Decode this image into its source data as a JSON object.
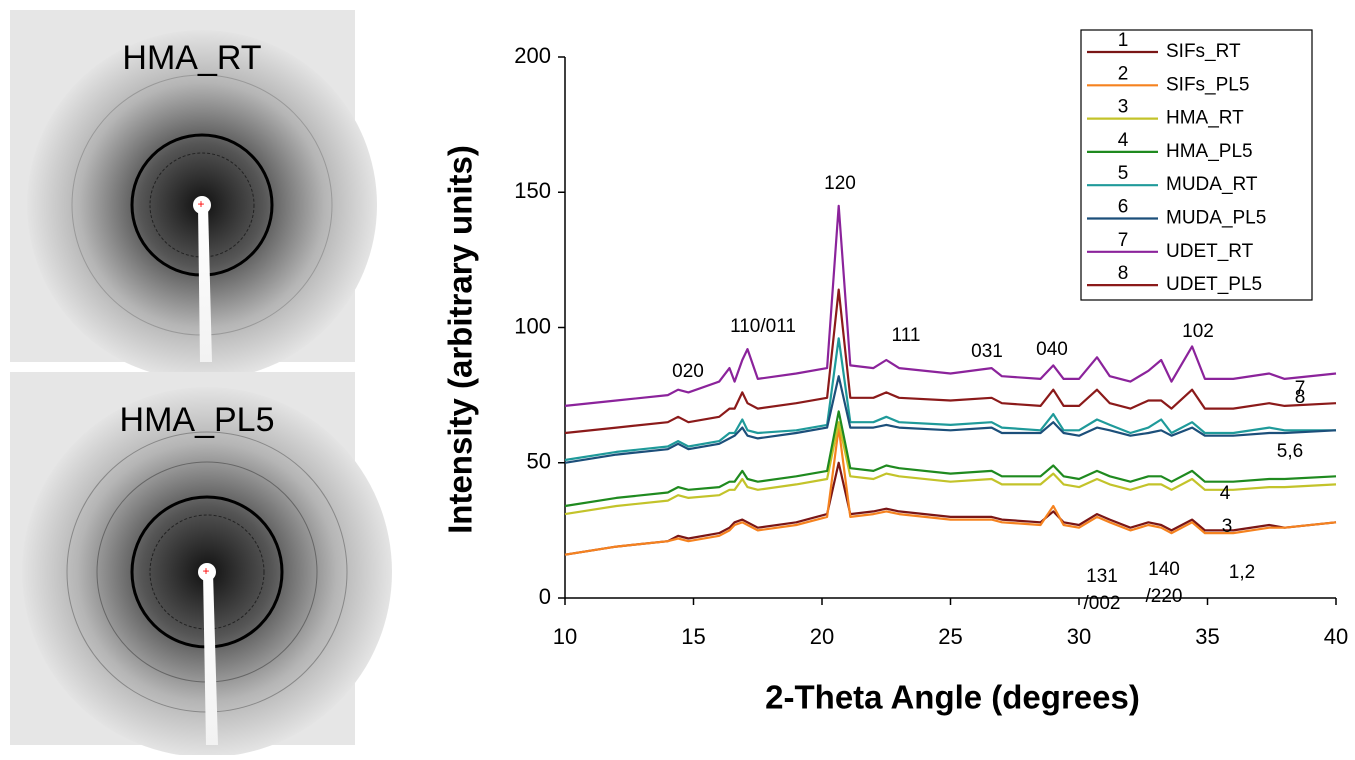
{
  "images": [
    {
      "title": "HMA_RT"
    },
    {
      "title": "HMA_PL5"
    }
  ],
  "chart_data": {
    "type": "line",
    "xlabel": "2-Theta Angle (degrees)",
    "ylabel": "Intensity (arbitrary units)",
    "xlim": [
      10,
      40
    ],
    "xticks": [
      10,
      15,
      20,
      25,
      30,
      35,
      40
    ],
    "ylim": [
      0,
      200
    ],
    "yticks": [
      0,
      50,
      100,
      150,
      200
    ],
    "grid": false,
    "legend": "upper right",
    "x": [
      10,
      12,
      14,
      14.4,
      14.8,
      16,
      16.4,
      16.6,
      16.9,
      17.1,
      17.5,
      19,
      20.2,
      20.65,
      21.1,
      22,
      22.5,
      23,
      25,
      26.6,
      27,
      28.5,
      29,
      29.4,
      30,
      30.7,
      31.2,
      32,
      32.7,
      33.2,
      33.6,
      34.4,
      34.9,
      36,
      37.4,
      38,
      40
    ],
    "series": [
      {
        "label": "1",
        "name": "SIFs_RT",
        "color": "#7a1616",
        "values": [
          16,
          19,
          21,
          23,
          22,
          24,
          26,
          28,
          29,
          28,
          26,
          28,
          31,
          50,
          31,
          32,
          33,
          32,
          30,
          30,
          29,
          28,
          32,
          28,
          27,
          31,
          29,
          26,
          28,
          27,
          25,
          29,
          25,
          25,
          27,
          26,
          28
        ]
      },
      {
        "label": "2",
        "name": "SIFs_PL5",
        "color": "#f5821f",
        "values": [
          16,
          19,
          21,
          22,
          21,
          23,
          25,
          27,
          28,
          27,
          25,
          27,
          30,
          63,
          30,
          31,
          32,
          31,
          29,
          29,
          28,
          27,
          34,
          27,
          26,
          30,
          28,
          25,
          27,
          26,
          24,
          28,
          24,
          24,
          26,
          26,
          28
        ]
      },
      {
        "label": "3",
        "name": "HMA_RT",
        "color": "#c3c32a",
        "values": [
          31,
          34,
          36,
          38,
          37,
          38,
          40,
          40,
          44,
          41,
          40,
          42,
          44,
          65,
          45,
          44,
          46,
          45,
          43,
          44,
          42,
          42,
          46,
          42,
          41,
          44,
          42,
          40,
          42,
          42,
          40,
          44,
          40,
          40,
          41,
          41,
          42
        ]
      },
      {
        "label": "4",
        "name": "HMA_PL5",
        "color": "#1f8a1f",
        "values": [
          34,
          37,
          39,
          41,
          40,
          41,
          43,
          43,
          47,
          44,
          43,
          45,
          47,
          69,
          48,
          47,
          49,
          48,
          46,
          47,
          45,
          45,
          49,
          45,
          44,
          47,
          45,
          43,
          45,
          45,
          43,
          47,
          43,
          43,
          44,
          44,
          45
        ]
      },
      {
        "label": "5",
        "name": "MUDA_RT",
        "color": "#1f9a9a",
        "values": [
          51,
          54,
          56,
          58,
          56,
          58,
          61,
          61,
          66,
          62,
          61,
          62,
          64,
          96,
          65,
          65,
          67,
          65,
          64,
          65,
          63,
          62,
          68,
          62,
          62,
          66,
          64,
          61,
          63,
          66,
          61,
          65,
          61,
          61,
          63,
          62,
          62
        ]
      },
      {
        "label": "6",
        "name": "MUDA_PL5",
        "color": "#1c4f7a",
        "values": [
          50,
          53,
          55,
          57,
          55,
          57,
          59,
          60,
          63,
          60,
          59,
          61,
          63,
          82,
          63,
          63,
          64,
          63,
          62,
          63,
          61,
          61,
          65,
          61,
          60,
          63,
          62,
          60,
          61,
          62,
          60,
          63,
          60,
          60,
          61,
          61,
          62
        ]
      },
      {
        "label": "7",
        "name": "UDET_RT",
        "color": "#8b239b",
        "values": [
          71,
          73,
          75,
          77,
          76,
          80,
          85,
          80,
          88,
          92,
          81,
          83,
          85,
          145,
          86,
          85,
          88,
          85,
          83,
          85,
          82,
          81,
          86,
          81,
          81,
          89,
          82,
          80,
          84,
          88,
          80,
          93,
          81,
          81,
          83,
          81,
          83
        ]
      },
      {
        "label": "8",
        "name": "UDET_PL5",
        "color": "#8b1a1a",
        "values": [
          61,
          63,
          65,
          67,
          65,
          67,
          70,
          70,
          76,
          72,
          70,
          72,
          74,
          114,
          74,
          74,
          76,
          74,
          73,
          74,
          72,
          71,
          77,
          71,
          71,
          77,
          72,
          70,
          73,
          73,
          70,
          77,
          70,
          70,
          72,
          71,
          72
        ]
      }
    ],
    "annotations": [
      "020",
      "110/011",
      "120",
      "111",
      "031",
      "040",
      "102",
      "7",
      "8",
      "5,6",
      "4",
      "3",
      "1,2",
      "131",
      "/002",
      "140",
      "/220"
    ]
  }
}
